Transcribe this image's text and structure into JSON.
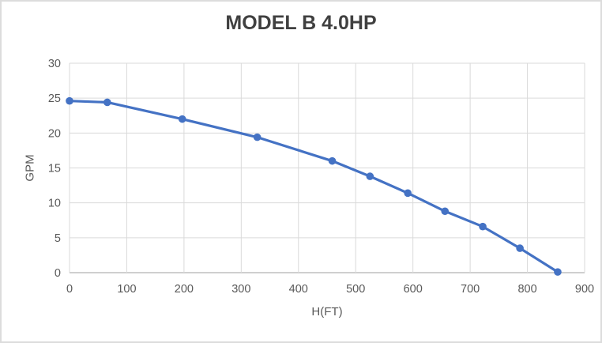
{
  "window": {
    "background": "#FFFFFF",
    "border_color": "#DCDCDC"
  },
  "chart_data": {
    "type": "line",
    "title": "MODEL B 4.0HP",
    "xlabel": "H(FT)",
    "ylabel": "GPM",
    "x": [
      0,
      66,
      197,
      328,
      459,
      525,
      591,
      656,
      722,
      787,
      853
    ],
    "y": [
      24.6,
      24.4,
      22,
      19.4,
      16,
      13.8,
      11.4,
      8.8,
      6.6,
      3.5,
      0.1
    ],
    "xlim": [
      0,
      900
    ],
    "ylim": [
      0,
      30
    ],
    "x_ticks": [
      0,
      100,
      200,
      300,
      400,
      500,
      600,
      700,
      800,
      900
    ],
    "y_ticks": [
      0,
      5,
      10,
      15,
      20,
      25,
      30
    ],
    "grid": true,
    "legend_position": "none",
    "marker": "circle",
    "colors": {
      "series": "#4472C4",
      "title_text": "#404040",
      "tick_text": "#595959",
      "axis_title_text": "#595959",
      "gridline": "#DADADA",
      "axis_line": "#CFCFCF"
    }
  }
}
